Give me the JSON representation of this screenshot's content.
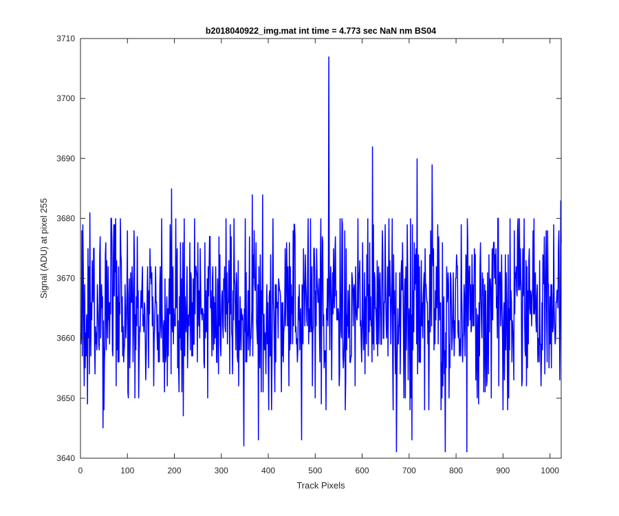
{
  "chart_data": {
    "type": "line",
    "title": "b2018040922_img.mat int time = 4.773 sec  NaN nm BS04",
    "xlabel": "Track Pixels",
    "ylabel": "Signal (ADU) at pixel 255",
    "xlim": [
      0,
      1024
    ],
    "ylim": [
      3640,
      3710
    ],
    "xticks": [
      "0",
      "100",
      "200",
      "300",
      "400",
      "500",
      "600",
      "700",
      "800",
      "900",
      "1000"
    ],
    "yticks": [
      "3640",
      "3650",
      "3660",
      "3670",
      "3680",
      "3690",
      "3700",
      "3710"
    ],
    "grid": false,
    "line_color": "#0000ff",
    "series": [
      {
        "n_points": 1024,
        "mean": 3665,
        "noise_std": 7.2,
        "min": 3641,
        "max": 3707,
        "notable_points": [
          {
            "x": 14,
            "y": 3649
          },
          {
            "x": 19,
            "y": 3681
          },
          {
            "x": 47,
            "y": 3645
          },
          {
            "x": 72,
            "y": 3679
          },
          {
            "x": 193,
            "y": 3685
          },
          {
            "x": 218,
            "y": 3647
          },
          {
            "x": 347,
            "y": 3642
          },
          {
            "x": 365,
            "y": 3684
          },
          {
            "x": 378,
            "y": 3643
          },
          {
            "x": 387,
            "y": 3684
          },
          {
            "x": 470,
            "y": 3643
          },
          {
            "x": 528,
            "y": 3707
          },
          {
            "x": 621,
            "y": 3692
          },
          {
            "x": 672,
            "y": 3641
          },
          {
            "x": 705,
            "y": 3643
          },
          {
            "x": 716,
            "y": 3690
          },
          {
            "x": 748,
            "y": 3689
          },
          {
            "x": 776,
            "y": 3641
          },
          {
            "x": 822,
            "y": 3641
          },
          {
            "x": 1022,
            "y": 3683
          }
        ]
      }
    ]
  }
}
